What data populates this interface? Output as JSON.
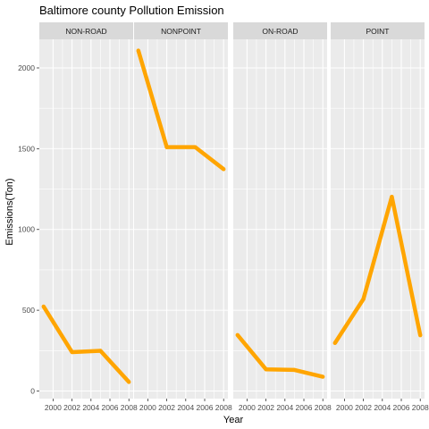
{
  "chart_data": {
    "type": "line",
    "title": "Baltimore county Pollution Emission",
    "xlabel": "Year",
    "ylabel": "Emissions(Ton)",
    "x": [
      1999,
      2002,
      2005,
      2008
    ],
    "x_ticks": [
      "2000",
      "2002",
      "2004",
      "2006",
      "2008"
    ],
    "x_tick_values": [
      2000,
      2002,
      2004,
      2006,
      2008
    ],
    "xlim": [
      1998.55,
      2008.45
    ],
    "y_ticks": [
      "0",
      "500",
      "1000",
      "1500",
      "2000"
    ],
    "y_tick_values": [
      0,
      500,
      1000,
      1500,
      2000
    ],
    "ylim": [
      -47,
      2177
    ],
    "grid": true,
    "line_color": "#FFA500",
    "panel_background": "#EBEBEB",
    "strip_background": "#D9D9D9",
    "facets": [
      {
        "name": "NON-ROAD",
        "values": [
          522.9,
          240.8,
          248.9,
          55.8
        ]
      },
      {
        "name": "NONPOINT",
        "values": [
          2107.6,
          1509.5,
          1509.5,
          1373.2
        ]
      },
      {
        "name": "ON-ROAD",
        "values": [
          346.8,
          134.3,
          130.4,
          88.3
        ]
      },
      {
        "name": "POINT",
        "values": [
          296.8,
          569.3,
          1202.5,
          344.98
        ]
      }
    ]
  }
}
